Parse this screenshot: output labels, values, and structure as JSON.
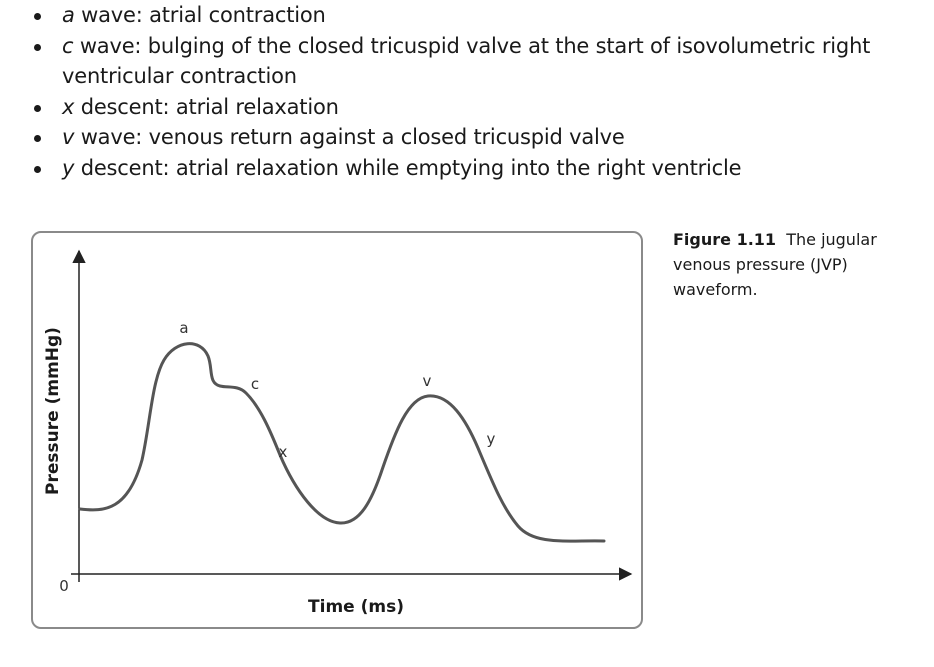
{
  "bullets": [
    {
      "term": "a",
      "text": " wave: atrial contraction"
    },
    {
      "term": "c",
      "text": " wave: bulging of the closed tricuspid valve at the start of isovolumetric right ventricular contraction"
    },
    {
      "term": "x",
      "text": " descent: atrial relaxation"
    },
    {
      "term": "v",
      "text": " wave: venous return against a closed tricuspid valve"
    },
    {
      "term": "y",
      "text": " descent: atrial relaxation while emptying into the right ventricle"
    }
  ],
  "figure": {
    "label": "Figure 1.11",
    "caption": "The jugular venous pressure (JVP) waveform."
  },
  "chart_data": {
    "type": "line",
    "xlabel": "Time (ms)",
    "ylabel": "Pressure (mmHg)",
    "origin_label": "0",
    "annotations": [
      "a",
      "c",
      "x",
      "v",
      "y"
    ],
    "grid": false,
    "colors": {
      "curve": "#555555",
      "axis": "#222222",
      "frame": "#8a8a8a"
    }
  }
}
